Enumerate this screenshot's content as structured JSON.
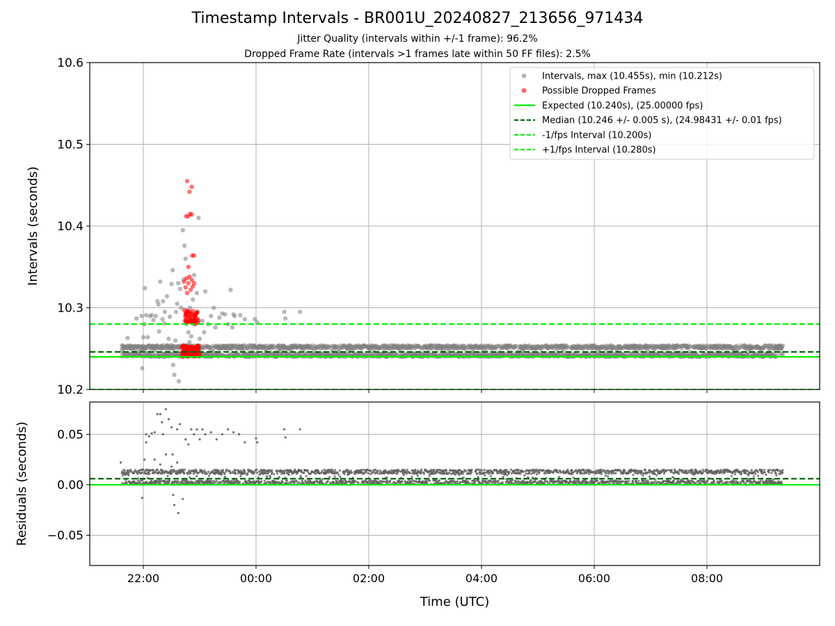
{
  "figure": {
    "title": "Timestamp Intervals - BR001U_20240827_213656_971434",
    "subtitle_1": "Jitter Quality (intervals within +/-1 frame): 96.2%",
    "subtitle_2": "Dropped Frame Rate (intervals >1 frames late within 50 FF files): 2.5%"
  },
  "chart_data": [
    {
      "type": "scatter",
      "ylabel": "Intervals (seconds)",
      "xlabel": "",
      "xlim_hours": [
        21.05,
        34.0
      ],
      "ylim": [
        10.2,
        10.6
      ],
      "x_ticks": [
        {
          "value": 22,
          "label": "22:00"
        },
        {
          "value": 24,
          "label": "00:00"
        },
        {
          "value": 26,
          "label": "02:00"
        },
        {
          "value": 28,
          "label": "04:00"
        },
        {
          "value": 30,
          "label": "06:00"
        },
        {
          "value": 32,
          "label": "08:00"
        }
      ],
      "y_ticks": [
        {
          "value": 10.2,
          "label": "10.2"
        },
        {
          "value": 10.3,
          "label": "10.3"
        },
        {
          "value": 10.4,
          "label": "10.4"
        },
        {
          "value": 10.5,
          "label": "10.5"
        },
        {
          "value": 10.6,
          "label": "10.6"
        }
      ],
      "grid": true,
      "legend_position": "top-right",
      "reference_lines": [
        {
          "name": "Expected (10.240s), (25.00000 fps)",
          "y": 10.24,
          "style": "solid",
          "color": "#00ee00"
        },
        {
          "name": "Median (10.246 +/- 0.005 s), (24.98431 +/- 0.01 fps)",
          "y": 10.246,
          "style": "dashed",
          "color": "#006400"
        },
        {
          "name": "-1/fps Interval (10.200s)",
          "y": 10.2,
          "style": "dashed",
          "color": "#00ee00"
        },
        {
          "name": "+1/fps Interval (10.280s)",
          "y": 10.28,
          "style": "dashed",
          "color": "#00ee00"
        }
      ],
      "series": [
        {
          "name": "Intervals, max (10.455s), min (10.212s)",
          "color": "#808080",
          "band": {
            "x_from": 21.62,
            "x_to": 33.35,
            "y_low": 10.24,
            "y_high": 10.254
          },
          "points": [
            [
              21.62,
              10.248
            ],
            [
              21.65,
              10.245
            ],
            [
              21.7,
              10.241
            ],
            [
              21.72,
              10.263
            ],
            [
              21.78,
              10.25
            ],
            [
              21.85,
              10.248
            ],
            [
              21.88,
              10.287
            ],
            [
              21.9,
              10.253
            ],
            [
              21.95,
              10.247
            ],
            [
              21.97,
              10.29
            ],
            [
              21.98,
              10.226
            ],
            [
              21.99,
              10.25
            ],
            [
              22.0,
              10.264
            ],
            [
              22.02,
              10.28
            ],
            [
              22.03,
              10.324
            ],
            [
              22.05,
              10.291
            ],
            [
              22.08,
              10.264
            ],
            [
              22.1,
              10.245
            ],
            [
              22.12,
              10.29
            ],
            [
              22.15,
              10.291
            ],
            [
              22.18,
              10.285
            ],
            [
              22.2,
              10.248
            ],
            [
              22.22,
              10.29
            ],
            [
              22.25,
              10.308
            ],
            [
              22.27,
              10.304
            ],
            [
              22.28,
              10.271
            ],
            [
              22.3,
              10.332
            ],
            [
              22.32,
              10.25
            ],
            [
              22.34,
              10.286
            ],
            [
              22.35,
              10.308
            ],
            [
              22.37,
              10.281
            ],
            [
              22.38,
              10.295
            ],
            [
              22.4,
              10.25
            ],
            [
              22.42,
              10.314
            ],
            [
              22.45,
              10.262
            ],
            [
              22.47,
              10.289
            ],
            [
              22.48,
              10.254
            ],
            [
              22.5,
              10.329
            ],
            [
              22.52,
              10.346
            ],
            [
              22.53,
              10.23
            ],
            [
              22.55,
              10.218
            ],
            [
              22.57,
              10.26
            ],
            [
              22.58,
              10.295
            ],
            [
              22.6,
              10.305
            ],
            [
              22.62,
              10.33
            ],
            [
              22.63,
              10.21
            ],
            [
              22.65,
              10.323
            ],
            [
              22.67,
              10.3
            ],
            [
              22.68,
              10.244
            ],
            [
              22.7,
              10.395
            ],
            [
              22.72,
              10.335
            ],
            [
              22.73,
              10.376
            ],
            [
              22.75,
              10.36
            ],
            [
              22.77,
              10.28
            ],
            [
              22.8,
              10.27
            ],
            [
              22.82,
              10.258
            ],
            [
              22.83,
              10.3
            ],
            [
              22.85,
              10.265
            ],
            [
              22.88,
              10.31
            ],
            [
              22.9,
              10.34
            ],
            [
              22.92,
              10.28
            ],
            [
              22.95,
              10.318
            ],
            [
              22.97,
              10.295
            ],
            [
              22.98,
              10.41
            ],
            [
              23.0,
              10.262
            ],
            [
              23.05,
              10.284
            ],
            [
              23.08,
              10.27
            ],
            [
              23.1,
              10.32
            ],
            [
              23.15,
              10.28
            ],
            [
              23.2,
              10.29
            ],
            [
              23.25,
              10.3
            ],
            [
              23.28,
              10.276
            ],
            [
              23.35,
              10.288
            ],
            [
              23.4,
              10.293
            ],
            [
              23.45,
              10.292
            ],
            [
              23.5,
              10.28
            ],
            [
              23.55,
              10.322
            ],
            [
              23.58,
              10.276
            ],
            [
              23.6,
              10.292
            ],
            [
              23.62,
              10.29
            ],
            [
              23.72,
              10.291
            ],
            [
              23.8,
              10.286
            ],
            [
              23.98,
              10.286
            ],
            [
              24.02,
              10.282
            ],
            [
              24.5,
              10.295
            ],
            [
              24.52,
              10.287
            ],
            [
              24.78,
              10.295
            ]
          ]
        },
        {
          "name": "Possible Dropped Frames",
          "color": "#ff0000",
          "cluster": {
            "x_from": 22.68,
            "x_to": 23.0
          },
          "points": [
            [
              22.78,
              10.455
            ],
            [
              22.82,
              10.442
            ],
            [
              22.86,
              10.448
            ],
            [
              22.76,
              10.412
            ],
            [
              22.8,
              10.412
            ],
            [
              22.83,
              10.415
            ],
            [
              22.86,
              10.414
            ],
            [
              22.87,
              10.364
            ],
            [
              22.9,
              10.364
            ],
            [
              22.8,
              10.35
            ],
            [
              22.72,
              10.332
            ],
            [
              22.75,
              10.325
            ],
            [
              22.77,
              10.336
            ],
            [
              22.78,
              10.318
            ],
            [
              22.8,
              10.33
            ],
            [
              22.82,
              10.338
            ],
            [
              22.84,
              10.322
            ],
            [
              22.86,
              10.334
            ],
            [
              22.88,
              10.326
            ],
            [
              22.9,
              10.33
            ],
            [
              22.73,
              10.297
            ],
            [
              22.76,
              10.29
            ],
            [
              22.78,
              10.283
            ],
            [
              22.8,
              10.294
            ],
            [
              22.82,
              10.287
            ],
            [
              22.84,
              10.285
            ],
            [
              22.86,
              10.292
            ],
            [
              22.88,
              10.296
            ],
            [
              22.9,
              10.281
            ],
            [
              22.92,
              10.29
            ],
            [
              22.95,
              10.295
            ],
            [
              22.98,
              10.284
            ]
          ]
        }
      ]
    },
    {
      "type": "scatter",
      "ylabel": "Residuals (seconds)",
      "xlabel": "Time (UTC)",
      "xlim_hours": [
        21.05,
        34.0
      ],
      "ylim": [
        -0.08,
        0.082
      ],
      "y_ticks": [
        {
          "value": 0.05,
          "label": "0.05"
        },
        {
          "value": 0.0,
          "label": "0.00"
        },
        {
          "value": -0.05,
          "label": "−0.05"
        }
      ],
      "grid": true,
      "reference_lines": [
        {
          "y": 0.0,
          "style": "solid",
          "color": "#00ee00"
        },
        {
          "y": 0.006,
          "style": "dashed",
          "color": "#006400"
        }
      ],
      "series": [
        {
          "name": "",
          "color": "#606060",
          "band": {
            "x_from": 21.62,
            "x_to": 33.35,
            "y_low": 0.0,
            "y_high": 0.015
          },
          "points": [
            [
              21.6,
              0.022
            ],
            [
              21.98,
              -0.013
            ],
            [
              22.0,
              0.015
            ],
            [
              22.02,
              0.025
            ],
            [
              22.05,
              0.042
            ],
            [
              22.05,
              0.05
            ],
            [
              22.1,
              0.048
            ],
            [
              22.15,
              0.051
            ],
            [
              22.2,
              0.052
            ],
            [
              22.25,
              0.07
            ],
            [
              22.3,
              0.07
            ],
            [
              22.33,
              0.062
            ],
            [
              22.35,
              0.05
            ],
            [
              22.4,
              0.075
            ],
            [
              22.45,
              0.065
            ],
            [
              22.5,
              0.057
            ],
            [
              22.52,
              0.03
            ],
            [
              22.53,
              -0.01
            ],
            [
              22.55,
              -0.02
            ],
            [
              22.6,
              0.055
            ],
            [
              22.65,
              0.06
            ],
            [
              22.7,
              -0.014
            ],
            [
              22.62,
              -0.028
            ],
            [
              22.75,
              0.045
            ],
            [
              22.8,
              0.04
            ],
            [
              22.85,
              0.055
            ],
            [
              22.9,
              0.05
            ],
            [
              22.95,
              0.055
            ],
            [
              23.0,
              0.045
            ],
            [
              23.05,
              0.055
            ],
            [
              23.1,
              0.05
            ],
            [
              23.2,
              0.052
            ],
            [
              23.3,
              0.045
            ],
            [
              23.4,
              0.05
            ],
            [
              23.5,
              0.055
            ],
            [
              23.6,
              0.052
            ],
            [
              23.7,
              0.05
            ],
            [
              23.8,
              0.042
            ],
            [
              24.0,
              0.046
            ],
            [
              24.02,
              0.042
            ],
            [
              24.5,
              0.055
            ],
            [
              24.52,
              0.047
            ],
            [
              24.78,
              0.055
            ],
            [
              22.2,
              0.025
            ],
            [
              22.3,
              0.02
            ],
            [
              22.4,
              0.03
            ],
            [
              22.5,
              0.018
            ],
            [
              22.6,
              0.022
            ],
            [
              22.7,
              0.015
            ]
          ]
        }
      ]
    }
  ]
}
